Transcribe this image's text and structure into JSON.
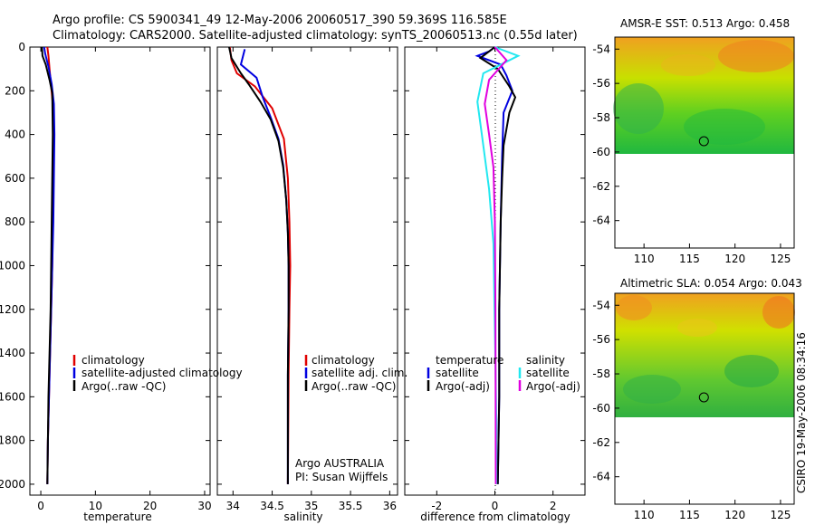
{
  "header": {
    "line1": "Argo profile: CS 5900341_49 12-May-2006 20060517_390 59.369S 116.585E",
    "line2": "Climatology: CARS2000. Satellite-adjusted climatology: synTS_20060513.nc (0.55d later)"
  },
  "side_label": "CSIRO 19-May-2006 08:34:16",
  "colors": {
    "red": "#e00000",
    "blue": "#0000e0",
    "black": "#000000",
    "cyan": "#22e8f0",
    "magenta": "#e000e0"
  },
  "chart_data": [
    {
      "type": "line",
      "panel": "temperature",
      "xlabel": "temperature",
      "xlim": [
        -2,
        31
      ],
      "ylim": [
        2050,
        0
      ],
      "xticks": [
        0,
        10,
        20,
        30
      ],
      "yticks": [
        0,
        200,
        400,
        600,
        800,
        1000,
        1200,
        1400,
        1600,
        1800,
        2000
      ],
      "series": [
        {
          "name": "climatology",
          "color": "red",
          "points": [
            [
              1.2,
              0
            ],
            [
              1.4,
              40
            ],
            [
              1.6,
              100
            ],
            [
              1.9,
              180
            ],
            [
              2.2,
              260
            ],
            [
              2.3,
              400
            ],
            [
              2.3,
              600
            ],
            [
              2.2,
              800
            ],
            [
              2.1,
              1000
            ],
            [
              1.9,
              1200
            ],
            [
              1.7,
              1400
            ],
            [
              1.5,
              1600
            ],
            [
              1.3,
              1800
            ],
            [
              1.2,
              2000
            ]
          ]
        },
        {
          "name": "satellite-adjusted climatology",
          "color": "blue",
          "points": [
            [
              0.6,
              0
            ],
            [
              0.8,
              30
            ],
            [
              1.4,
              90
            ],
            [
              2.0,
              170
            ],
            [
              2.4,
              260
            ],
            [
              2.5,
              400
            ],
            [
              2.4,
              600
            ],
            [
              2.3,
              800
            ],
            [
              2.1,
              1000
            ],
            [
              1.9,
              1200
            ],
            [
              1.7,
              1400
            ],
            [
              1.5,
              1600
            ],
            [
              1.3,
              1800
            ],
            [
              1.2,
              2000
            ]
          ]
        },
        {
          "name": "Argo(..raw -QC)",
          "color": "black",
          "points": [
            [
              0.2,
              0
            ],
            [
              0.3,
              40
            ],
            [
              0.9,
              80
            ],
            [
              1.6,
              150
            ],
            [
              2.1,
              210
            ],
            [
              2.2,
              400
            ],
            [
              2.1,
              600
            ],
            [
              2.0,
              800
            ],
            [
              1.9,
              1000
            ],
            [
              1.8,
              1200
            ],
            [
              1.6,
              1400
            ],
            [
              1.4,
              1600
            ],
            [
              1.3,
              1800
            ],
            [
              1.2,
              2000
            ]
          ]
        }
      ]
    },
    {
      "type": "line",
      "panel": "salinity",
      "xlabel": "salinity",
      "xlim": [
        33.8,
        36.1
      ],
      "ylim": [
        2050,
        0
      ],
      "xticks": [
        34,
        34.5,
        35,
        35.5,
        36
      ],
      "xticklabels": [
        "34",
        "34.5",
        "35",
        "35.5",
        "36"
      ],
      "series": [
        {
          "name": "climatology",
          "color": "red",
          "points": [
            [
              33.96,
              0
            ],
            [
              33.98,
              60
            ],
            [
              34.05,
              120
            ],
            [
              34.28,
              180
            ],
            [
              34.5,
              280
            ],
            [
              34.65,
              420
            ],
            [
              34.7,
              600
            ],
            [
              34.72,
              800
            ],
            [
              34.73,
              1000
            ],
            [
              34.72,
              1200
            ],
            [
              34.71,
              1500
            ],
            [
              34.7,
              2000
            ]
          ]
        },
        {
          "name": "satellite adj. clim.",
          "color": "blue",
          "points": [
            [
              34.15,
              10
            ],
            [
              34.1,
              80
            ],
            [
              34.3,
              140
            ],
            [
              34.38,
              230
            ],
            [
              34.48,
              320
            ],
            [
              34.58,
              420
            ],
            [
              34.64,
              540
            ],
            [
              34.68,
              700
            ],
            [
              34.7,
              850
            ],
            [
              34.71,
              1000
            ],
            [
              34.71,
              1200
            ],
            [
              34.7,
              1500
            ],
            [
              34.7,
              2000
            ]
          ]
        },
        {
          "name": "Argo(..raw -QC)",
          "color": "black",
          "points": [
            [
              33.95,
              0
            ],
            [
              33.98,
              50
            ],
            [
              34.1,
              120
            ],
            [
              34.2,
              170
            ],
            [
              34.35,
              250
            ],
            [
              34.48,
              330
            ],
            [
              34.58,
              430
            ],
            [
              34.64,
              550
            ],
            [
              34.68,
              700
            ],
            [
              34.7,
              850
            ],
            [
              34.71,
              1000
            ],
            [
              34.71,
              1200
            ],
            [
              34.7,
              1500
            ],
            [
              34.7,
              2000
            ]
          ]
        }
      ],
      "annotation": [
        "Argo AUSTRALIA",
        "PI: Susan Wijffels"
      ]
    },
    {
      "type": "line",
      "panel": "difference",
      "xlabel": "difference from climatology",
      "xlim": [
        -3.1,
        3.1
      ],
      "ylim": [
        2050,
        0
      ],
      "xticks": [
        -2,
        0,
        2
      ],
      "legend_groups": [
        "temperature",
        "salinity"
      ],
      "series": [
        {
          "name": "satellite",
          "group": "temperature",
          "color": "blue",
          "points": [
            [
              0,
              0
            ],
            [
              -0.2,
              20
            ],
            [
              -0.6,
              40
            ],
            [
              0.2,
              80
            ],
            [
              0.4,
              130
            ],
            [
              0.6,
              200
            ],
            [
              0.3,
              300
            ],
            [
              0.25,
              500
            ],
            [
              0.2,
              800
            ],
            [
              0.15,
              1200
            ],
            [
              0.15,
              1600
            ],
            [
              0.1,
              2000
            ]
          ]
        },
        {
          "name": "Argo(-adj)",
          "group": "temperature",
          "color": "black",
          "points": [
            [
              0,
              0
            ],
            [
              -0.5,
              50
            ],
            [
              0.1,
              100
            ],
            [
              0.5,
              180
            ],
            [
              0.7,
              230
            ],
            [
              0.5,
              300
            ],
            [
              0.3,
              450
            ],
            [
              0.25,
              600
            ],
            [
              0.2,
              800
            ],
            [
              0.15,
              1200
            ],
            [
              0.15,
              1600
            ],
            [
              0.1,
              2000
            ]
          ]
        },
        {
          "name": "satellite",
          "group": "salinity",
          "color": "cyan",
          "points": [
            [
              0,
              0
            ],
            [
              0.8,
              40
            ],
            [
              -0.4,
              120
            ],
            [
              -0.6,
              250
            ],
            [
              -0.45,
              400
            ],
            [
              -0.2,
              650
            ],
            [
              -0.05,
              900
            ],
            [
              0,
              1300
            ],
            [
              0.05,
              1700
            ],
            [
              0.05,
              2000
            ]
          ]
        },
        {
          "name": "Argo(-adj)",
          "group": "salinity",
          "color": "magenta",
          "points": [
            [
              0,
              0
            ],
            [
              0.4,
              60
            ],
            [
              -0.2,
              150
            ],
            [
              -0.35,
              260
            ],
            [
              -0.2,
              400
            ],
            [
              -0.05,
              550
            ],
            [
              0,
              800
            ],
            [
              0.02,
              1200
            ],
            [
              0.03,
              2000
            ]
          ]
        }
      ]
    },
    {
      "type": "heatmap",
      "panel": "sst",
      "title": "AMSR-E SST: 0.513 Argo: 0.458",
      "xlim": [
        106.8,
        126.5
      ],
      "ylim": [
        -65.6,
        -53.3
      ],
      "xticks": [
        110,
        115,
        120,
        125
      ],
      "yticks": [
        -54,
        -56,
        -58,
        -60,
        -62,
        -64
      ],
      "marker": [
        116.585,
        -59.369
      ],
      "data_south_limit": -60
    },
    {
      "type": "heatmap",
      "panel": "sla",
      "title": "Altimetric SLA: 0.054 Argo: 0.043",
      "xlim": [
        106.8,
        126.5
      ],
      "ylim": [
        -65.6,
        -53.3
      ],
      "xticks": [
        110,
        115,
        120,
        125
      ],
      "yticks": [
        -54,
        -56,
        -58,
        -60,
        -62,
        -64
      ],
      "marker": [
        116.585,
        -59.369
      ],
      "data_south_limit": -60
    }
  ]
}
